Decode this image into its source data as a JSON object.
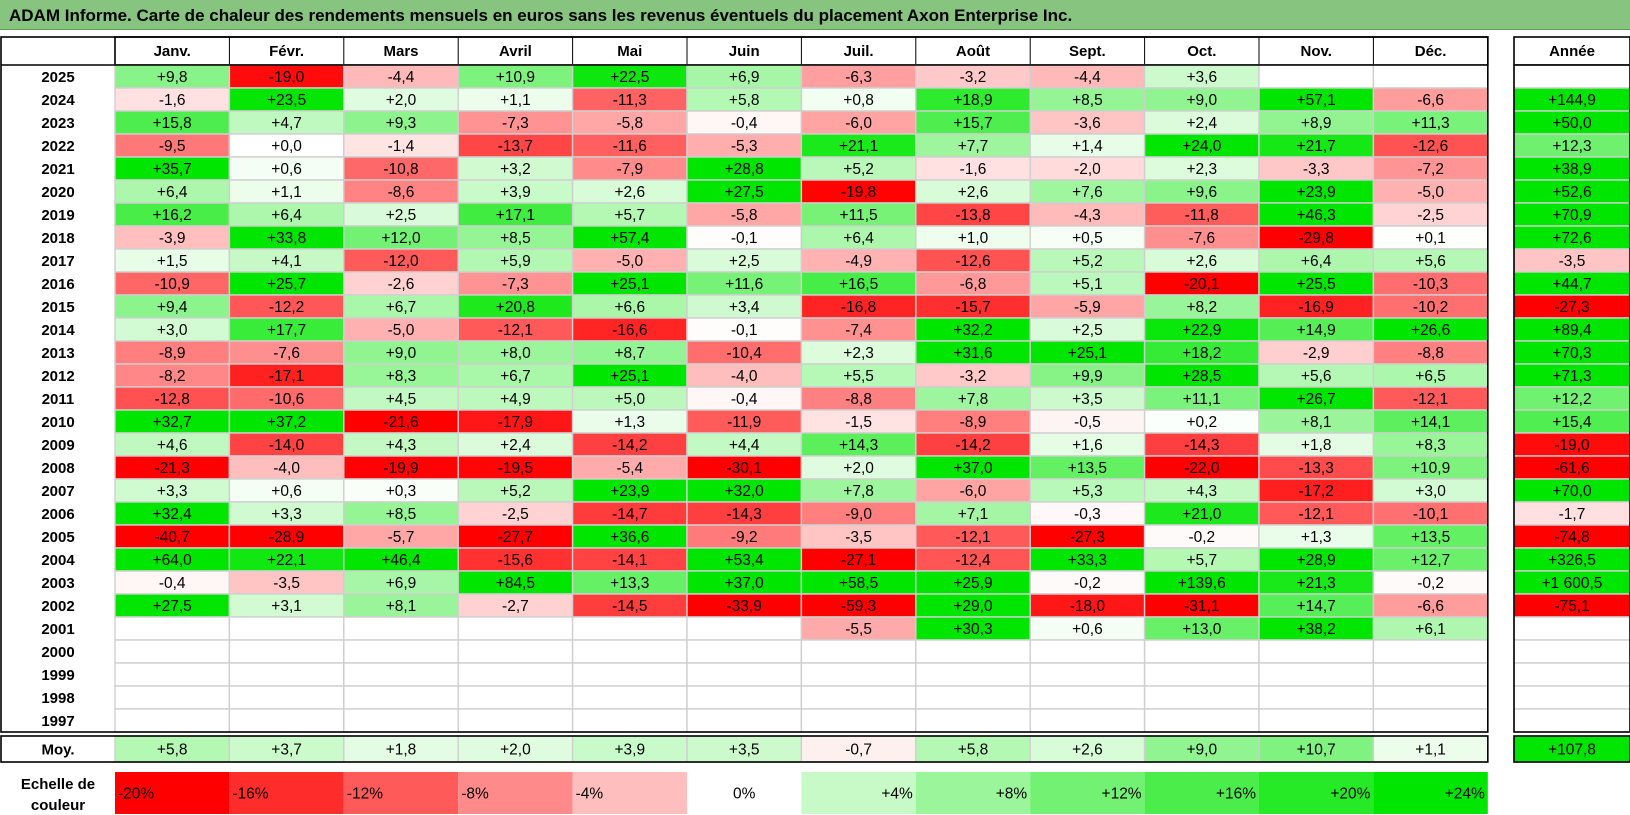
{
  "title": "ADAM Informe. Carte de chaleur des rendements mensuels en euros sans les revenus éventuels du placement Axon Enterprise Inc.",
  "chart_data": {
    "type": "heatmap",
    "months": [
      "Janv.",
      "Févr.",
      "Mars",
      "Avril",
      "Mai",
      "Juin",
      "Juil.",
      "Août",
      "Sept.",
      "Oct.",
      "Nov.",
      "Déc."
    ],
    "annual_header": "Année",
    "rows": [
      {
        "year": "2025",
        "values": [
          9.8,
          -19.0,
          -4.4,
          10.9,
          22.5,
          6.9,
          -6.3,
          -3.2,
          -4.4,
          3.6,
          null,
          null
        ],
        "annual": null
      },
      {
        "year": "2024",
        "values": [
          -1.6,
          23.5,
          2.0,
          1.1,
          -11.3,
          5.8,
          0.8,
          18.9,
          8.5,
          9.0,
          57.1,
          -6.6
        ],
        "annual": 144.9
      },
      {
        "year": "2023",
        "values": [
          15.8,
          4.7,
          9.3,
          -7.3,
          -5.8,
          -0.4,
          -6.0,
          15.7,
          -3.6,
          2.4,
          8.9,
          11.3
        ],
        "annual": 50.0
      },
      {
        "year": "2022",
        "values": [
          -9.5,
          0.0,
          -1.4,
          -13.7,
          -11.6,
          -5.3,
          21.1,
          7.7,
          1.4,
          24.0,
          21.7,
          -12.6
        ],
        "annual": 12.3
      },
      {
        "year": "2021",
        "values": [
          35.7,
          0.6,
          -10.8,
          3.2,
          -7.9,
          28.8,
          5.2,
          -1.6,
          -2.0,
          2.3,
          -3.3,
          -7.2
        ],
        "annual": 38.9
      },
      {
        "year": "2020",
        "values": [
          6.4,
          1.1,
          -8.6,
          3.9,
          2.6,
          27.5,
          -19.8,
          2.6,
          7.6,
          9.6,
          23.9,
          -5.0
        ],
        "annual": 52.6
      },
      {
        "year": "2019",
        "values": [
          16.2,
          6.4,
          2.5,
          17.1,
          5.7,
          -5.8,
          11.5,
          -13.8,
          -4.3,
          -11.8,
          46.3,
          -2.5
        ],
        "annual": 70.9
      },
      {
        "year": "2018",
        "values": [
          -3.9,
          33.8,
          12.0,
          8.5,
          57.4,
          -0.1,
          6.4,
          1.0,
          0.5,
          -7.6,
          -29.8,
          0.1
        ],
        "annual": 72.6
      },
      {
        "year": "2017",
        "values": [
          1.5,
          4.1,
          -12.0,
          5.9,
          -5.0,
          2.5,
          -4.9,
          -12.6,
          5.2,
          2.6,
          6.4,
          5.6
        ],
        "annual": -3.5
      },
      {
        "year": "2016",
        "values": [
          -10.9,
          25.7,
          -2.6,
          -7.3,
          25.1,
          11.6,
          16.5,
          -6.8,
          5.1,
          -20.1,
          25.5,
          -10.3
        ],
        "annual": 44.7
      },
      {
        "year": "2015",
        "values": [
          9.4,
          -12.2,
          6.7,
          20.8,
          6.6,
          3.4,
          -16.8,
          -15.7,
          -5.9,
          8.2,
          -16.9,
          -10.2
        ],
        "annual": -27.3
      },
      {
        "year": "2014",
        "values": [
          3.0,
          17.7,
          -5.0,
          -12.1,
          -16.6,
          -0.1,
          -7.4,
          32.2,
          2.5,
          22.9,
          14.9,
          26.6
        ],
        "annual": 89.4
      },
      {
        "year": "2013",
        "values": [
          -8.9,
          -7.6,
          9.0,
          8.0,
          8.7,
          -10.4,
          2.3,
          31.6,
          25.1,
          18.2,
          -2.9,
          -8.8
        ],
        "annual": 70.3
      },
      {
        "year": "2012",
        "values": [
          -8.2,
          -17.1,
          8.3,
          6.7,
          25.1,
          -4.0,
          5.5,
          -3.2,
          9.9,
          28.5,
          5.6,
          6.5
        ],
        "annual": 71.3
      },
      {
        "year": "2011",
        "values": [
          -12.8,
          -10.6,
          4.5,
          4.9,
          5.0,
          -0.4,
          -8.8,
          7.8,
          3.5,
          11.1,
          26.7,
          -12.1
        ],
        "annual": 12.2
      },
      {
        "year": "2010",
        "values": [
          32.7,
          37.2,
          -21.6,
          -17.9,
          1.3,
          -11.9,
          -1.5,
          -8.9,
          -0.5,
          0.2,
          8.1,
          14.1
        ],
        "annual": 15.4
      },
      {
        "year": "2009",
        "values": [
          4.6,
          -14.0,
          4.3,
          2.4,
          -14.2,
          4.4,
          14.3,
          -14.2,
          1.6,
          -14.3,
          1.8,
          8.3
        ],
        "annual": -19.0
      },
      {
        "year": "2008",
        "values": [
          -21.3,
          -4.0,
          -19.9,
          -19.5,
          -5.4,
          -30.1,
          2.0,
          37.0,
          13.5,
          -22.0,
          -13.3,
          10.9
        ],
        "annual": -61.6
      },
      {
        "year": "2007",
        "values": [
          3.3,
          0.6,
          0.3,
          5.2,
          23.9,
          32.0,
          7.8,
          -6.0,
          5.3,
          4.3,
          -17.2,
          3.0
        ],
        "annual": 70.0
      },
      {
        "year": "2006",
        "values": [
          32.4,
          3.3,
          8.5,
          -2.5,
          -14.7,
          -14.3,
          -9.0,
          7.1,
          -0.3,
          21.0,
          -12.1,
          -10.1
        ],
        "annual": -1.7
      },
      {
        "year": "2005",
        "values": [
          -40.7,
          -28.9,
          -5.7,
          -27.7,
          36.6,
          -9.2,
          -3.5,
          -12.1,
          -27.3,
          -0.2,
          1.3,
          13.5
        ],
        "annual": -74.8
      },
      {
        "year": "2004",
        "values": [
          64.0,
          22.1,
          46.4,
          -15.6,
          -14.1,
          53.4,
          -27.1,
          -12.4,
          33.3,
          5.7,
          28.9,
          12.7
        ],
        "annual": 326.5
      },
      {
        "year": "2003",
        "values": [
          -0.4,
          -3.5,
          6.9,
          84.5,
          13.3,
          37.0,
          58.5,
          25.9,
          -0.2,
          139.6,
          21.3,
          -0.2
        ],
        "annual": 1600.5
      },
      {
        "year": "2002",
        "values": [
          27.5,
          3.1,
          8.1,
          -2.7,
          -14.5,
          -33.9,
          -59.3,
          29.0,
          -18.0,
          -31.1,
          14.7,
          -6.6
        ],
        "annual": -75.1
      },
      {
        "year": "2001",
        "values": [
          null,
          null,
          null,
          null,
          null,
          null,
          -5.5,
          30.3,
          0.6,
          13.0,
          38.2,
          6.1
        ],
        "annual": null
      },
      {
        "year": "2000",
        "values": [
          null,
          null,
          null,
          null,
          null,
          null,
          null,
          null,
          null,
          null,
          null,
          null
        ],
        "annual": null
      },
      {
        "year": "1999",
        "values": [
          null,
          null,
          null,
          null,
          null,
          null,
          null,
          null,
          null,
          null,
          null,
          null
        ],
        "annual": null
      },
      {
        "year": "1998",
        "values": [
          null,
          null,
          null,
          null,
          null,
          null,
          null,
          null,
          null,
          null,
          null,
          null
        ],
        "annual": null
      },
      {
        "year": "1997",
        "values": [
          null,
          null,
          null,
          null,
          null,
          null,
          null,
          null,
          null,
          null,
          null,
          null
        ],
        "annual": null
      }
    ],
    "average": {
      "label": "Moy.",
      "values": [
        5.8,
        3.7,
        1.8,
        2.0,
        3.9,
        3.5,
        -0.7,
        5.8,
        2.6,
        9.0,
        10.7,
        1.1
      ],
      "annual": 107.8
    },
    "color_scale": {
      "label": "Echelle de couleur",
      "steps": [
        {
          "label": "-20%",
          "value": -20
        },
        {
          "label": "-16%",
          "value": -16
        },
        {
          "label": "-12%",
          "value": -12
        },
        {
          "label": "-8%",
          "value": -8
        },
        {
          "label": "-4%",
          "value": -4
        },
        {
          "label": "0%",
          "value": 0
        },
        {
          "label": "+4%",
          "value": 4
        },
        {
          "label": "+8%",
          "value": 8
        },
        {
          "label": "+12%",
          "value": 12
        },
        {
          "label": "+16%",
          "value": 16
        },
        {
          "label": "+20%",
          "value": 20
        },
        {
          "label": "+24%",
          "value": 24
        }
      ],
      "negative_color": "#ff0000",
      "positive_color": "#00e600",
      "neutral_color": "#ffffff"
    }
  }
}
